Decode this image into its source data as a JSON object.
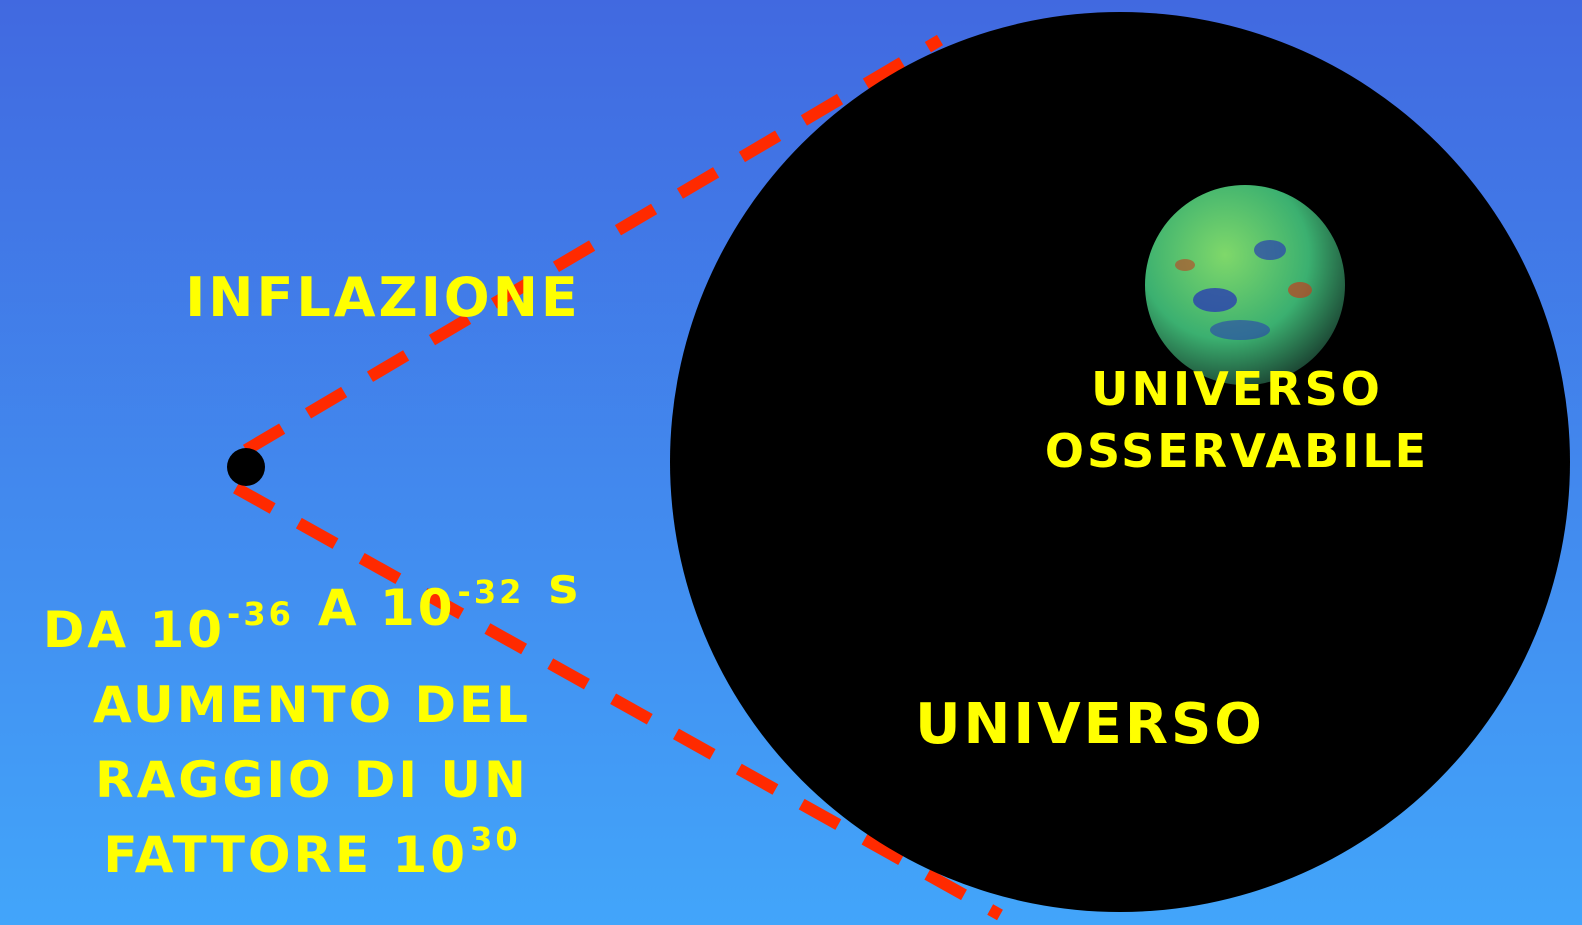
{
  "title": "INFLAZIONE",
  "caption": {
    "lines": [
      [
        {
          "base": "DA 10",
          "sup": "-36"
        },
        {
          "base": "A 10",
          "sup": "-32"
        },
        {
          "base": "s"
        }
      ],
      [
        {
          "base": "AUMENTO DEL"
        }
      ],
      [
        {
          "base": "RAGGIO DI UN"
        }
      ],
      [
        {
          "base": "FATTORE 10",
          "sup": "30"
        }
      ]
    ]
  },
  "observable": {
    "lines": [
      "UNIVERSO",
      "OSSERVABILE"
    ]
  },
  "universe": "UNIVERSO"
}
